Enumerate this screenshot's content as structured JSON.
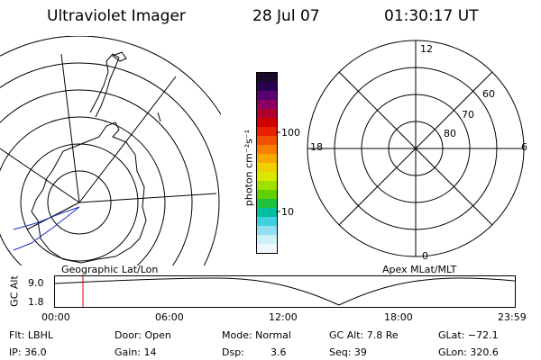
{
  "header": {
    "instrument": "Ultraviolet Imager",
    "date": "28 Jul 07",
    "time": "01:30:17 UT"
  },
  "colorbar": {
    "label": "photon cm⁻²s⁻¹",
    "ticks": [
      "100",
      "10"
    ],
    "colors": [
      "#1a0a2a",
      "#2a0050",
      "#5a0070",
      "#8a0060",
      "#b00030",
      "#d00000",
      "#e82000",
      "#f05000",
      "#f88000",
      "#f8a800",
      "#f0d000",
      "#d8e800",
      "#a0e000",
      "#60d000",
      "#20c040",
      "#00c0a0",
      "#40d0e0",
      "#90e0f0",
      "#d0f0f8",
      "#f0f8ff"
    ]
  },
  "left_panel": {
    "caption": "Geographic Lat/Lon"
  },
  "right_panel": {
    "caption": "Apex MLat/MLT",
    "mlt_labels": {
      "top": "12",
      "left": "18",
      "right": "6",
      "bottom": "0"
    },
    "lat_labels": [
      "60",
      "70",
      "80"
    ]
  },
  "altitude_plot": {
    "ylabel": "GC Alt",
    "yticks": [
      "9.0",
      "1.8"
    ],
    "xticks": [
      "00:00",
      "06:00",
      "12:00",
      "18:00",
      "23:59"
    ],
    "marker_time": "01:30"
  },
  "info": {
    "flt": "Flt: LBHL",
    "ip": "IP: 36.0",
    "door": "Door: Open",
    "gain": "Gain: 14",
    "mode": "Mode: Normal",
    "dsp_label": "Dsp:",
    "dsp_value": "3.6",
    "gc_alt": "GC Alt: 7.8 Re",
    "seq": "Seq: 39",
    "glat": "GLat: −72.1",
    "glon": "GLon: 320.6"
  }
}
